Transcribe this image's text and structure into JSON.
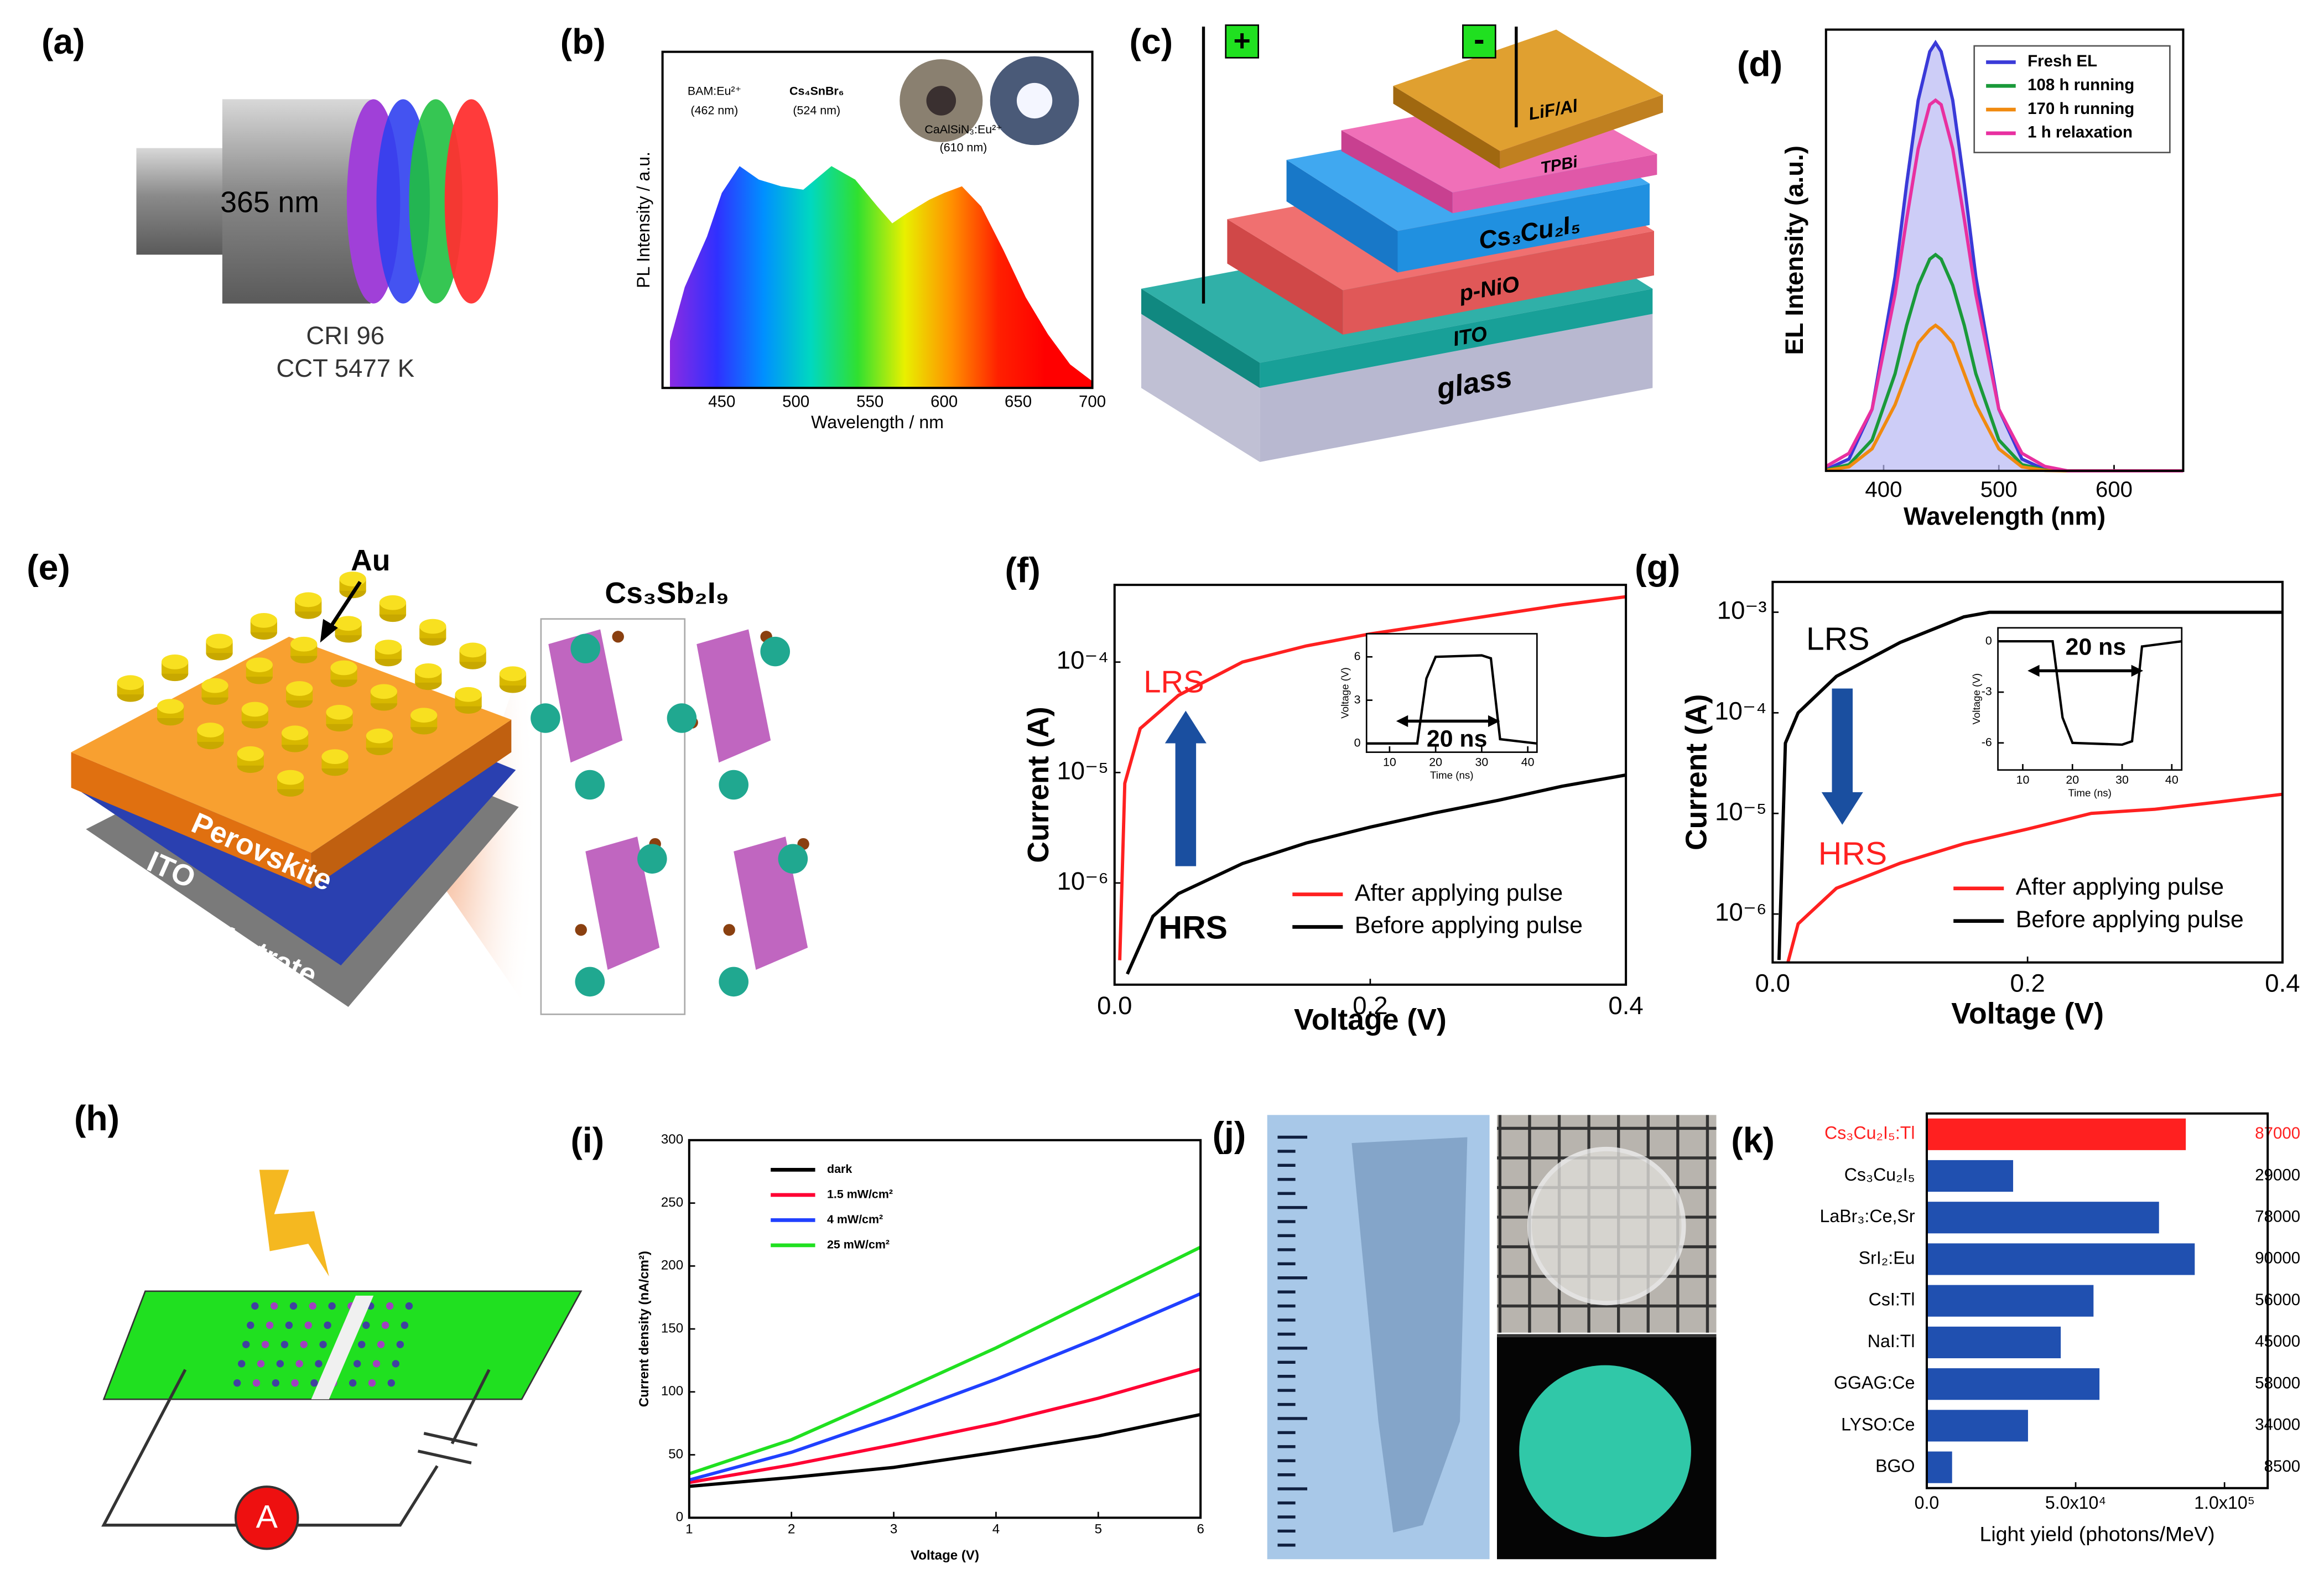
{
  "panels": [
    "(a)",
    "(b)",
    "(c)",
    "(d)",
    "(e)",
    "(f)",
    "(g)",
    "(h)",
    "(i)",
    "(j)",
    "(k)"
  ],
  "diagram_a": {
    "wavelength": "365 nm",
    "cri": "CRI 96",
    "cct": "CCT 5477 K"
  },
  "diagram_c": {
    "plus": "+",
    "minus": "-",
    "layers": [
      "LiF/Al",
      "TPBi",
      "Cs₃Cu₂I₅",
      "p-NiO",
      "ITO",
      "glass"
    ]
  },
  "diagram_e": {
    "electrode": "Au",
    "crystal": "Cs₃Sb₂I₉",
    "layers": [
      "Perovskite",
      "ITO",
      "Glass substrate"
    ]
  },
  "diagram_h": {
    "meter": "A"
  },
  "chart_data": [
    {
      "type": "area",
      "xlabel": "Wavelength / nm",
      "ylabel": "PL Intensity / a.u.",
      "annotations": [
        "BAM:Eu²⁺",
        "(462 nm)",
        "Cs₄SnBr₆",
        "(524 nm)",
        "CaAlSiN₃:Eu²⁺",
        "(610 nm)"
      ],
      "x": [
        415,
        425,
        440,
        450,
        462,
        475,
        490,
        505,
        524,
        540,
        555,
        565,
        575,
        590,
        600,
        612,
        625,
        640,
        655,
        670,
        685,
        700
      ],
      "series": [
        {
          "values": [
            0.14,
            0.3,
            0.45,
            0.58,
            0.66,
            0.62,
            0.6,
            0.59,
            0.66,
            0.62,
            0.54,
            0.49,
            0.52,
            0.56,
            0.58,
            0.6,
            0.54,
            0.41,
            0.27,
            0.16,
            0.07,
            0.02
          ]
        }
      ],
      "gradient": [
        "#8a2be2",
        "#3030ff",
        "#0090ff",
        "#00d8c0",
        "#30e030",
        "#e8f000",
        "#ff9000",
        "#ff2000",
        "#ff0000",
        "#ff0000"
      ],
      "xlim": [
        410,
        700
      ],
      "ylim": [
        0,
        1
      ],
      "xticks": [
        450,
        500,
        550,
        600,
        650,
        700
      ]
    },
    {
      "type": "line",
      "xlabel": "Wavelength (nm)",
      "ylabel": "EL Intensity (a.u.)",
      "legend": "upper right",
      "x": [
        350,
        370,
        390,
        410,
        420,
        430,
        440,
        445,
        450,
        460,
        470,
        480,
        500,
        520,
        540,
        560,
        600,
        660
      ],
      "series": [
        {
          "name": "Fresh EL",
          "color": "#3a3ad8",
          "fill": "#b8b8f4",
          "values": [
            0.003,
            0.027,
            0.14,
            0.44,
            0.65,
            0.84,
            0.95,
            0.97,
            0.95,
            0.84,
            0.65,
            0.44,
            0.14,
            0.027,
            0.003,
            0,
            0,
            0
          ]
        },
        {
          "name": "108 h running",
          "color": "#1a9a3a",
          "values": [
            0.002,
            0.014,
            0.07,
            0.22,
            0.33,
            0.42,
            0.48,
            0.49,
            0.48,
            0.42,
            0.33,
            0.22,
            0.07,
            0.014,
            0.002,
            0,
            0,
            0
          ]
        },
        {
          "name": "170 h running",
          "color": "#f08a10",
          "values": [
            0.001,
            0.009,
            0.05,
            0.15,
            0.22,
            0.29,
            0.32,
            0.33,
            0.32,
            0.29,
            0.22,
            0.15,
            0.05,
            0.009,
            0.001,
            0,
            0,
            0
          ]
        },
        {
          "name": "1 h relaxation",
          "color": "#e830a0",
          "values": [
            0.01,
            0.04,
            0.14,
            0.4,
            0.57,
            0.73,
            0.83,
            0.84,
            0.83,
            0.73,
            0.57,
            0.4,
            0.14,
            0.04,
            0.01,
            0,
            0,
            0
          ]
        }
      ],
      "xlim": [
        350,
        660
      ],
      "ylim": [
        0,
        1
      ],
      "xticks": [
        400,
        500,
        600
      ]
    },
    {
      "type": "line",
      "yscale": "log",
      "xlabel": "Voltage (V)",
      "ylabel": "Current (A)",
      "legend": "lower right",
      "annotations": [
        "LRS",
        "HRS"
      ],
      "series": [
        {
          "name": "After applying pulse",
          "color": "#ff2020",
          "x": [
            0.004,
            0.008,
            0.02,
            0.05,
            0.1,
            0.15,
            0.2,
            0.25,
            0.3,
            0.35,
            0.4
          ],
          "values": [
            2e-07,
            8e-06,
            2.5e-05,
            5e-05,
            0.0001,
            0.00014,
            0.00018,
            0.00022,
            0.00027,
            0.00033,
            0.00039
          ]
        },
        {
          "name": "Before applying pulse",
          "color": "#000000",
          "x": [
            0.01,
            0.03,
            0.05,
            0.1,
            0.15,
            0.2,
            0.25,
            0.3,
            0.35,
            0.4
          ],
          "values": [
            1.5e-07,
            5e-07,
            8e-07,
            1.5e-06,
            2.3e-06,
            3.2e-06,
            4.3e-06,
            5.6e-06,
            7.5e-06,
            9.5e-06
          ]
        }
      ],
      "xlim": [
        0,
        0.4
      ],
      "ylim": [
        1.2e-07,
        0.0005
      ],
      "xticks": [
        {
          "value": 0,
          "label": "0.0"
        },
        0.2,
        0.4
      ],
      "yticks": [
        {
          "value": 1e-06,
          "label": "10⁻⁶"
        },
        {
          "value": 1e-05,
          "label": "10⁻⁵"
        },
        {
          "value": 0.0001,
          "label": "10⁻⁴"
        }
      ]
    },
    {
      "type": "line",
      "yscale": "log",
      "xlabel": "Voltage (V)",
      "ylabel": "Current (A)",
      "legend": "lower right",
      "annotations": [
        "LRS",
        "HRS"
      ],
      "series": [
        {
          "name": "After applying pulse",
          "color": "#ff2020",
          "x": [
            0.012,
            0.02,
            0.05,
            0.1,
            0.15,
            0.2,
            0.25,
            0.3,
            0.35,
            0.4
          ],
          "values": [
            3.3e-07,
            8e-07,
            1.8e-06,
            3.2e-06,
            5e-06,
            7e-06,
            1e-05,
            1.1e-05,
            1.3e-05,
            1.55e-05
          ]
        },
        {
          "name": "Before applying pulse",
          "color": "#000000",
          "x": [
            0.005,
            0.01,
            0.02,
            0.05,
            0.1,
            0.15,
            0.17,
            0.4
          ],
          "values": [
            3.5e-07,
            5e-05,
            0.0001,
            0.00023,
            0.0005,
            0.0009,
            0.001,
            0.001
          ]
        }
      ],
      "xlim": [
        0,
        0.4
      ],
      "ylim": [
        3.3e-07,
        0.002
      ],
      "xticks": [
        {
          "value": 0,
          "label": "0.0"
        },
        0.2,
        0.4
      ],
      "yticks": [
        {
          "value": 1e-06,
          "label": "10⁻⁶"
        },
        {
          "value": 1e-05,
          "label": "10⁻⁵"
        },
        {
          "value": 0.0001,
          "label": "10⁻⁴"
        },
        {
          "value": 0.001,
          "label": "10⁻³"
        }
      ]
    },
    {
      "type": "line",
      "xlabel": "Voltage (V)",
      "ylabel": "Current density (nA/cm²)",
      "legend": "upper left",
      "x": [
        1,
        2,
        3,
        4,
        5,
        6
      ],
      "series": [
        {
          "name": "dark",
          "color": "#000000",
          "values": [
            25,
            32,
            40,
            52,
            65,
            82
          ]
        },
        {
          "name": "1.5 mW/cm²",
          "color": "#ff0033",
          "values": [
            28,
            42,
            58,
            75,
            95,
            118
          ]
        },
        {
          "name": "4  mW/cm²",
          "color": "#2040ff",
          "values": [
            30,
            52,
            80,
            110,
            143,
            178
          ]
        },
        {
          "name": "25  mW/cm²",
          "color": "#20e020",
          "values": [
            35,
            62,
            98,
            135,
            175,
            215
          ]
        }
      ],
      "xlim": [
        1,
        6
      ],
      "ylim": [
        0,
        300
      ],
      "xticks": [
        1,
        2,
        3,
        4,
        5,
        6
      ],
      "yticks": [
        0,
        50,
        100,
        150,
        200,
        250,
        300
      ]
    },
    {
      "type": "barh",
      "xlabel": "Light yield  (photons/MeV)",
      "categories": [
        "Cs₃Cu₂I₅:Tl",
        "Cs₃Cu₂I₅",
        "LaBr₃:Ce,Sr",
        "SrI₂:Eu",
        "CsI:Tl",
        "NaI:Tl",
        "GGAG:Ce",
        "LYSO:Ce",
        "BGO"
      ],
      "values": [
        87000,
        29000,
        78000,
        90000,
        56000,
        45000,
        58000,
        34000,
        8500
      ],
      "colors": [
        "#ff2020",
        "#2050b0",
        "#2050b0",
        "#2050b0",
        "#2050b0",
        "#2050b0",
        "#2050b0",
        "#2050b0",
        "#2050b0"
      ],
      "xlim": [
        0,
        114500
      ],
      "xticks": [
        {
          "value": 0,
          "label": "0.0"
        },
        {
          "value": 50000,
          "label": "5.0x10⁴"
        },
        {
          "value": 100000,
          "label": "1.0x10⁵"
        }
      ]
    },
    {
      "type": "line",
      "xlabel": "Time (ns)",
      "ylabel": "Voltage (V)",
      "annotations": [
        "20 ns"
      ],
      "x": [
        5,
        16,
        18,
        20,
        30,
        32,
        34,
        42
      ],
      "series": [
        {
          "color": "#000000",
          "values": [
            0,
            0,
            4.5,
            6,
            6.1,
            5.9,
            0.3,
            0
          ]
        }
      ],
      "xlim": [
        5,
        42
      ],
      "ylim": [
        -0.6,
        7.6
      ],
      "xticks": [
        10,
        20,
        30,
        40
      ],
      "yticks": [
        0,
        3,
        6
      ]
    },
    {
      "type": "line",
      "xlabel": "Time (ns)",
      "ylabel": "Voltage (V)",
      "annotations": [
        "20 ns"
      ],
      "x": [
        5,
        16,
        18,
        20,
        30,
        32,
        34,
        42
      ],
      "series": [
        {
          "color": "#000000",
          "values": [
            0,
            0,
            -4.5,
            -6,
            -6.1,
            -5.9,
            -0.3,
            0
          ]
        }
      ],
      "xlim": [
        5,
        42
      ],
      "ylim": [
        -7.6,
        0.8
      ],
      "xticks": [
        10,
        20,
        30,
        40
      ],
      "yticks": [
        0,
        -3,
        -6
      ]
    }
  ]
}
